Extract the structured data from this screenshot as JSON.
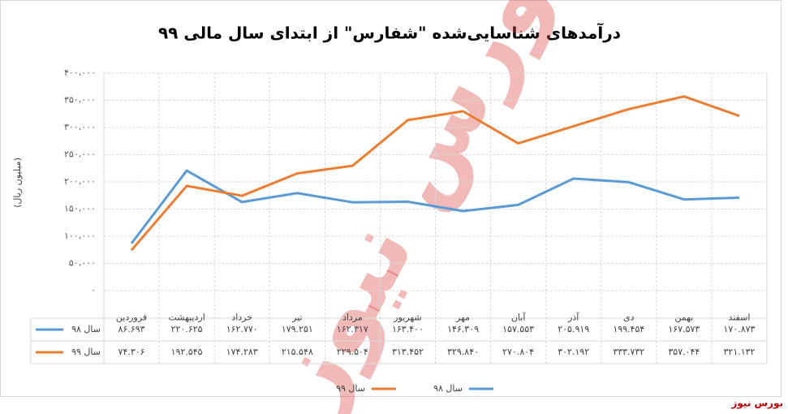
{
  "chart_data": {
    "type": "line",
    "title": "درآمدهای شناسایی‌شده \"شفارس\" از ابتدای سال مالی ۹۹",
    "y_label": "(میلیون ریال)",
    "watermark": "بورس نیوز",
    "source": "بورس نیوز",
    "categories": [
      "فروردین",
      "اردیبهشت",
      "خرداد",
      "تیر",
      "مرداد",
      "شهریور",
      "مهر",
      "آبان",
      "آذر",
      "دی",
      "بهمن",
      "اسفند"
    ],
    "series": [
      {
        "name": "سال ۹۸",
        "color": "#5b9bd5",
        "values": [
          86693,
          220625,
          162770,
          179251,
          162317,
          163400,
          146309,
          157553,
          205919,
          199454,
          167573,
          170873
        ],
        "value_labels": [
          "۸۶.۶۹۳",
          "۲۲۰.۶۲۵",
          "۱۶۲.۷۷۰",
          "۱۷۹.۲۵۱",
          "۱۶۲.۳۱۷",
          "۱۶۳.۴۰۰",
          "۱۴۶.۳۰۹",
          "۱۵۷.۵۵۳",
          "۲۰۵.۹۱۹",
          "۱۹۹.۴۵۴",
          "۱۶۷.۵۷۳",
          "۱۷۰.۸۷۳"
        ]
      },
      {
        "name": "سال ۹۹",
        "color": "#ed7d31",
        "values": [
          74306,
          192545,
          174283,
          215548,
          229504,
          313452,
          329840,
          270804,
          302192,
          333732,
          357044,
          321132
        ],
        "value_labels": [
          "۷۴.۳۰۶",
          "۱۹۲.۵۴۵",
          "۱۷۴.۲۸۳",
          "۲۱۵.۵۴۸",
          "۲۲۹.۵۰۴",
          "۳۱۳.۴۵۲",
          "۳۲۹.۸۴۰",
          "۲۷۰.۸۰۴",
          "۳۰۲.۱۹۲",
          "۳۳۳.۷۳۲",
          "۳۵۷.۰۴۴",
          "۳۲۱.۱۳۲"
        ]
      }
    ],
    "ylim": [
      0,
      400000
    ],
    "yticks": [
      {
        "value": 0,
        "label": "۰"
      },
      {
        "value": 50000,
        "label": "۵۰،۰۰۰"
      },
      {
        "value": 100000,
        "label": "۱۰۰،۰۰۰"
      },
      {
        "value": 150000,
        "label": "۱۵۰،۰۰۰"
      },
      {
        "value": 200000,
        "label": "۲۰۰،۰۰۰"
      },
      {
        "value": 250000,
        "label": "۲۵۰،۰۰۰"
      },
      {
        "value": 300000,
        "label": "۳۰۰،۰۰۰"
      },
      {
        "value": 350000,
        "label": "۳۵۰،۰۰۰"
      },
      {
        "value": 400000,
        "label": "۴۰۰،۰۰۰"
      }
    ],
    "grid": true
  }
}
